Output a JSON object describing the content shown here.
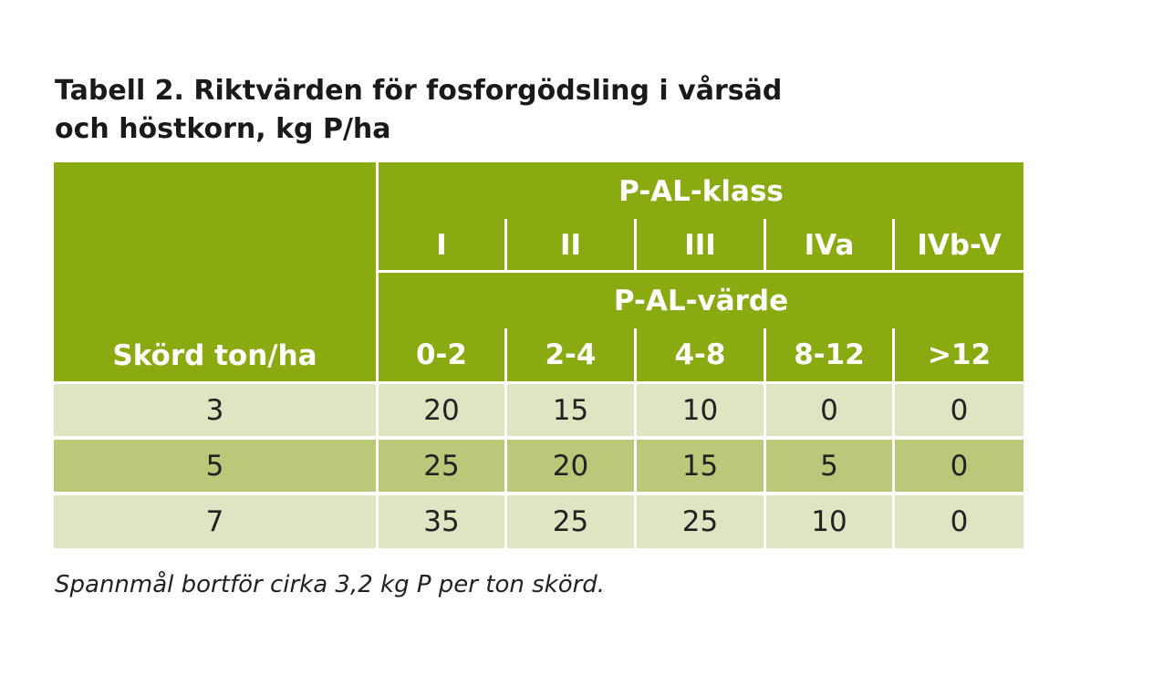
{
  "title": {
    "lines": [
      "Tabell 2. Riktvärden för fosforgödsling i vårsäd",
      "och höstkorn, kg P/ha"
    ]
  },
  "table": {
    "row_header": "Skörd ton/ha",
    "group1": "P-AL-klass",
    "classes": [
      "I",
      "II",
      "III",
      "IVa",
      "IVb-V"
    ],
    "group2": "P-AL-värde",
    "ranges": [
      "0-2",
      "2-4",
      "4-8",
      "8-12",
      ">12"
    ],
    "rows": [
      [
        3,
        20,
        15,
        10,
        0,
        0
      ],
      [
        5,
        25,
        20,
        15,
        5,
        0
      ],
      [
        7,
        35,
        25,
        25,
        10,
        0
      ]
    ]
  },
  "footnote": "Spannmål bortför cirka 3,2 kg P per ton skörd."
}
